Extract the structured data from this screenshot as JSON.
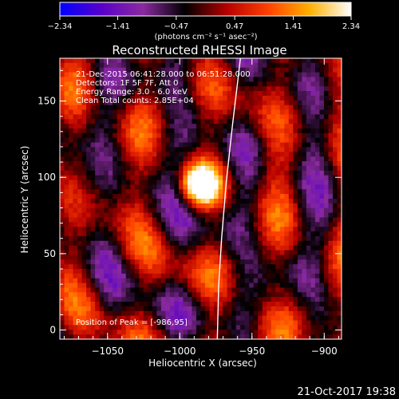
{
  "chart_data": {
    "type": "heatmap",
    "title": "Reconstructed RHESSI Image",
    "xlabel": "Heliocentric X (arcsec)",
    "ylabel": "Heliocentric Y (arcsec)",
    "xlim": [
      -1083,
      -888
    ],
    "ylim": [
      -6,
      178
    ],
    "xticks": [
      -1050,
      -1000,
      -950,
      -900
    ],
    "yticks": [
      0,
      50,
      100,
      150
    ],
    "xtick_labels": [
      "−1050",
      "−1000",
      "−950",
      "−900"
    ],
    "ytick_labels": [
      "0",
      "50",
      "100",
      "150"
    ],
    "colorbar": {
      "range": [
        -2.34,
        2.34
      ],
      "ticks": [
        -2.34,
        -1.41,
        -0.47,
        0.47,
        1.41,
        2.34
      ],
      "tick_labels": [
        "−2.34",
        "−1.41",
        "−0.47",
        "0.47",
        "1.41",
        "2.34"
      ],
      "units_label": "(photons cm⁻² s⁻¹ asec⁻²)",
      "colormap": [
        "#0000ff",
        "#5a00c8",
        "#8a2aa0",
        "#000000",
        "#b40000",
        "#ff4000",
        "#ffb000",
        "#ffffff"
      ]
    },
    "annotations": [
      "21-Dec-2015 06:41:28.000 to 06:51:28.000",
      "Detectors: 1F 5F 7F, Att 0",
      "Energy Range: 3.0 - 6.0 keV",
      "Clean     Total counts: 2.85E+04"
    ],
    "peak_label": "Position of Peak = [-986,95]",
    "peak": {
      "x": -986,
      "y": 95,
      "value": 2.34
    },
    "limb_curve": [
      {
        "x": -974,
        "y": -6
      },
      {
        "x": -973,
        "y": 30
      },
      {
        "x": -971,
        "y": 60
      },
      {
        "x": -968,
        "y": 95
      },
      {
        "x": -964,
        "y": 130
      },
      {
        "x": -958,
        "y": 178
      }
    ],
    "grid": false,
    "image_grid": {
      "cols": 64,
      "rows": 60
    }
  },
  "footer": {
    "timestamp": "21-Oct-2017 19:38"
  }
}
